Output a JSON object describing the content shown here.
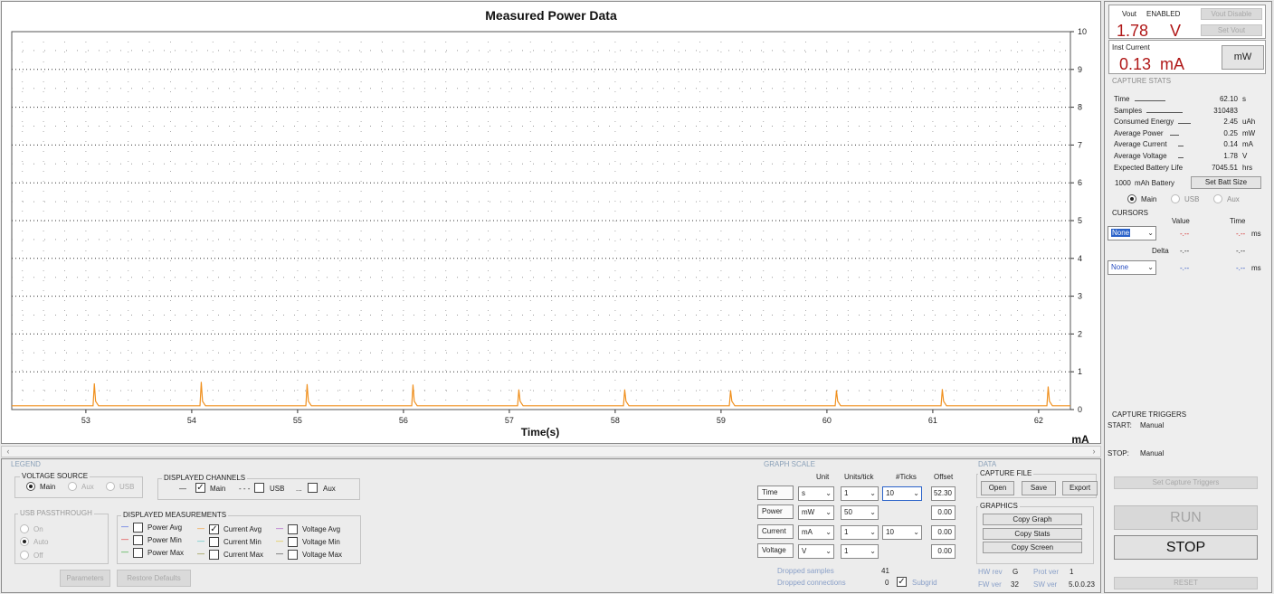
{
  "graph": {
    "title": "Measured Power Data",
    "x_title": "Time(s)",
    "y_unit": "mA"
  },
  "chart_data": {
    "type": "line",
    "title": "Measured Power Data",
    "xlabel": "Time(s)",
    "ylabel": "mA",
    "xlim": [
      52.3,
      62.3
    ],
    "ylim": [
      0,
      10
    ],
    "x_ticks": [
      "53",
      "54",
      "55",
      "56",
      "57",
      "58",
      "59",
      "60",
      "61",
      "62"
    ],
    "y_ticks": [
      "0",
      "1",
      "2",
      "3",
      "4",
      "5",
      "6",
      "7",
      "8",
      "9",
      "10"
    ],
    "grid": true,
    "series": [
      {
        "name": "Current Avg",
        "color": "#f0901e",
        "baseline": 0.1,
        "x": [
          52.3,
          53.08,
          54.09,
          55.09,
          56.09,
          57.09,
          58.09,
          59.09,
          60.09,
          61.09,
          62.09,
          62.3
        ],
        "y": [
          0.1,
          0.68,
          0.72,
          0.66,
          0.65,
          0.52,
          0.52,
          0.5,
          0.5,
          0.53,
          0.6,
          0.1
        ]
      }
    ]
  },
  "vout": {
    "label": "Vout",
    "state": "ENABLED",
    "value": "1.78",
    "unit": "V",
    "disable_btn": "Vout Disable",
    "set_btn": "Set Vout"
  },
  "inst_current": {
    "label": "Inst Current",
    "value": "0.13",
    "unit": "mA",
    "toggle_btn": "mW"
  },
  "capture_stats": {
    "title": "CAPTURE STATS",
    "rows": [
      {
        "name": "Time",
        "value": "62.10",
        "unit": "s"
      },
      {
        "name": "Samples",
        "value": "310483",
        "unit": ""
      },
      {
        "name": "Consumed Energy",
        "value": "2.45",
        "unit": "uAh"
      },
      {
        "name": "Average Power",
        "value": "0.25",
        "unit": "mW"
      },
      {
        "name": "Average Current",
        "value": "0.14",
        "unit": "mA"
      },
      {
        "name": "Average Voltage",
        "value": "1.78",
        "unit": "V"
      },
      {
        "name": "Expected Battery Life",
        "value": "7045.51",
        "unit": "hrs"
      }
    ],
    "battery_value": "1000",
    "battery_label": "mAh Battery",
    "set_batt_btn": "Set Batt Size",
    "src_main": "Main",
    "src_usb": "USB",
    "src_aux": "Aux"
  },
  "cursors": {
    "title": "CURSORS",
    "col_value": "Value",
    "col_time": "Time",
    "cursor1_select": "None",
    "c1_value": "-.--",
    "c1_time": "-.--",
    "c1_unit": "ms",
    "delta_label": "Delta",
    "d_value": "-.--",
    "d_time": "-.--",
    "cursor2_select": "None",
    "c2_value": "-.--",
    "c2_time": "-.--",
    "c2_unit": "ms"
  },
  "capture_triggers": {
    "title": "CAPTURE TRIGGERS",
    "start_label": "START:",
    "start_value": "Manual",
    "stop_label": "STOP:",
    "stop_value": "Manual",
    "set_btn": "Set Capture Triggers"
  },
  "controls": {
    "run": "RUN",
    "stop": "STOP",
    "reset": "RESET"
  },
  "legend": {
    "section": "LEGEND",
    "voltage_source_title": "VOLTAGE SOURCE",
    "vs_main": "Main",
    "vs_aux": "Aux",
    "vs_usb": "USB",
    "displayed_channels_title": "DISPLAYED CHANNELS",
    "ch_main": "Main",
    "ch_usb": "USB",
    "ch_aux": "Aux",
    "usb_passthrough_title": "USB PASSTHROUGH",
    "pt_on": "On",
    "pt_auto": "Auto",
    "pt_off": "Off",
    "displayed_meas_title": "DISPLAYED MEASUREMENTS",
    "m_power_avg": "Power Avg",
    "m_power_min": "Power Min",
    "m_power_max": "Power Max",
    "m_current_avg": "Current Avg",
    "m_current_min": "Current Min",
    "m_current_max": "Current Max",
    "m_voltage_avg": "Voltage Avg",
    "m_voltage_min": "Voltage Min",
    "m_voltage_max": "Voltage Max",
    "parameters_btn": "Parameters",
    "restore_btn": "Restore Defaults"
  },
  "graph_scale": {
    "section": "GRAPH SCALE",
    "h_unit": "Unit",
    "h_units_tick": "Units/tick",
    "h_ticks": "#Ticks",
    "h_offset": "Offset",
    "time_label": "Time",
    "time_unit": "s",
    "time_upt": "1",
    "time_ticks": "10",
    "time_offset": "52.30",
    "power_label": "Power",
    "power_unit": "mW",
    "power_upt": "50",
    "power_offset": "0.00",
    "current_label": "Current",
    "current_unit": "mA",
    "current_upt": "1",
    "current_ticks": "10",
    "current_offset": "0.00",
    "voltage_label": "Voltage",
    "voltage_unit": "V",
    "voltage_upt": "1",
    "voltage_offset": "0.00",
    "dropped_samples_label": "Dropped samples",
    "dropped_samples": "41",
    "dropped_conn_label": "Dropped connections",
    "dropped_conn": "0",
    "subgrid_label": "Subgrid"
  },
  "data_panel": {
    "section": "DATA",
    "capture_file_title": "CAPTURE FILE",
    "open_btn": "Open",
    "save_btn": "Save",
    "export_btn": "Export",
    "graphics_title": "GRAPHICS",
    "copy_graph": "Copy Graph",
    "copy_stats": "Copy Stats",
    "copy_screen": "Copy Screen",
    "hw_rev_label": "HW rev",
    "hw_rev": "G",
    "prot_ver_label": "Prot ver",
    "prot_ver": "1",
    "fw_ver_label": "FW ver",
    "fw_ver": "32",
    "sw_ver_label": "SW ver",
    "sw_ver": "5.0.0.23"
  }
}
